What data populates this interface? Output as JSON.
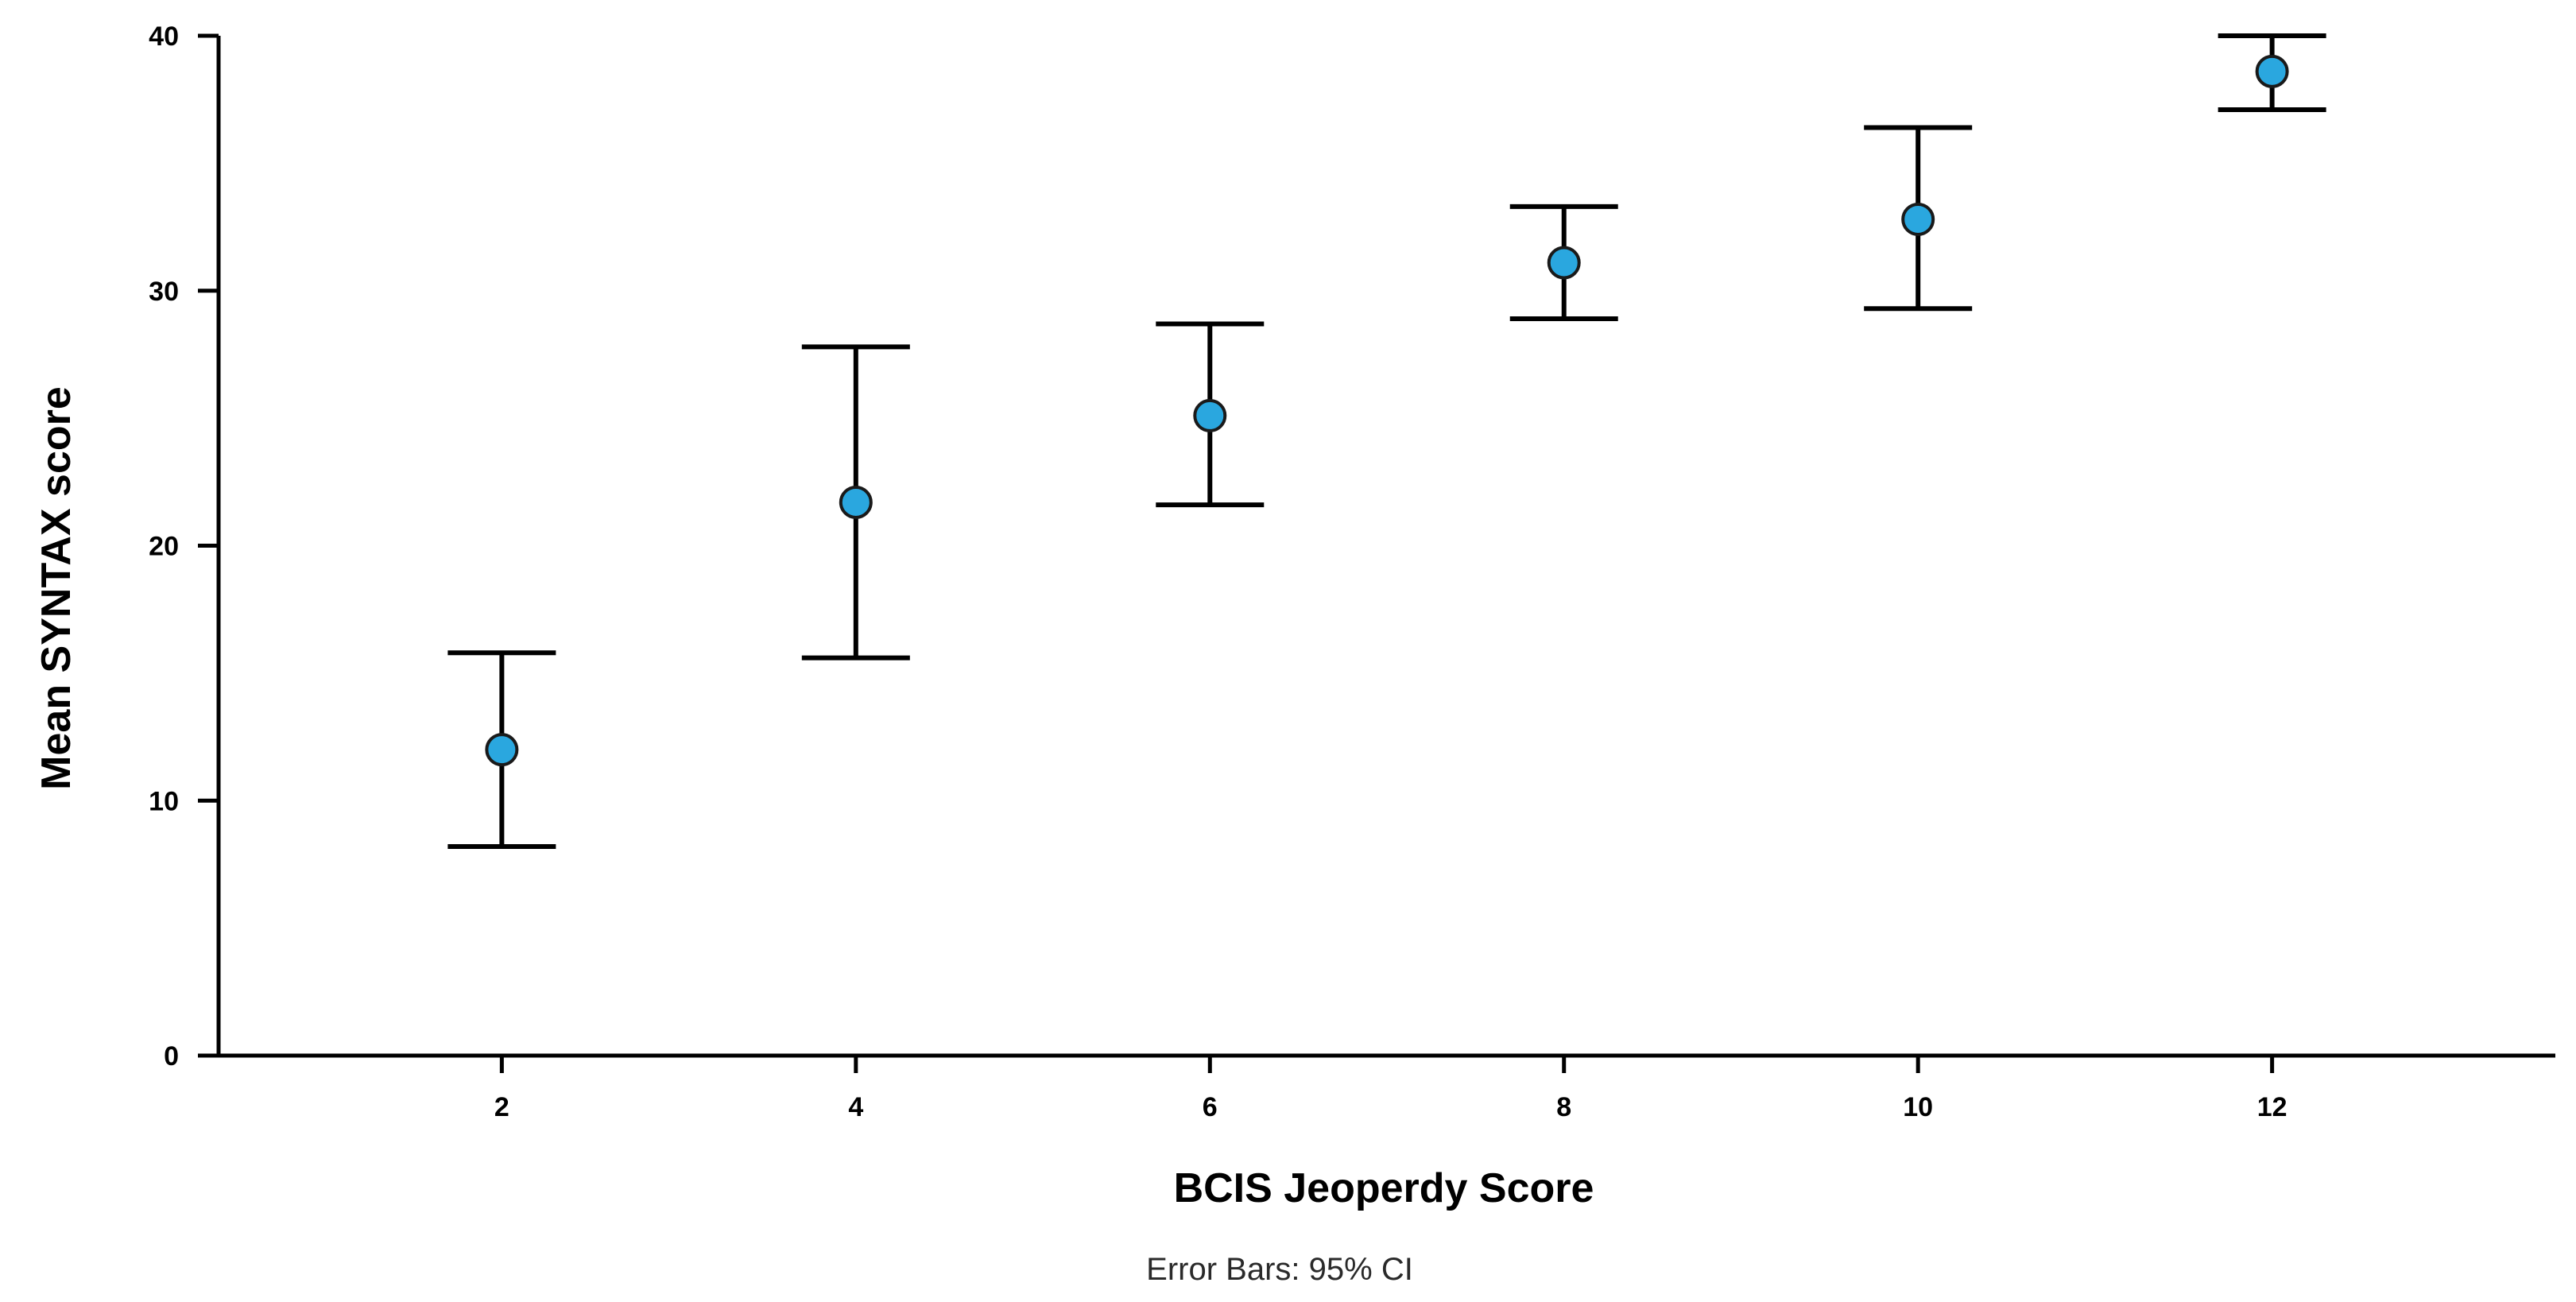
{
  "chart_data": {
    "type": "scatter",
    "title": "",
    "xlabel": "BCIS Jeoperdy Score",
    "ylabel": "Mean SYNTAX score",
    "note": "Error Bars: 95% CI",
    "xlim": [
      0.4,
      13.6
    ],
    "ylim": [
      0,
      40
    ],
    "x_ticks": [
      2,
      4,
      6,
      8,
      10,
      12
    ],
    "y_ticks": [
      0,
      10,
      20,
      30,
      40
    ],
    "grid": false,
    "point_color": "#2aa7df",
    "series": [
      {
        "x": [
          2,
          4,
          6,
          8,
          10,
          12
        ],
        "mean": [
          12.0,
          21.7,
          25.1,
          31.1,
          32.8,
          38.6
        ],
        "ci_lower": [
          8.2,
          15.6,
          21.6,
          28.9,
          29.3,
          37.1
        ],
        "ci_upper": [
          15.8,
          27.8,
          28.7,
          33.3,
          36.4,
          40.0
        ]
      }
    ]
  }
}
